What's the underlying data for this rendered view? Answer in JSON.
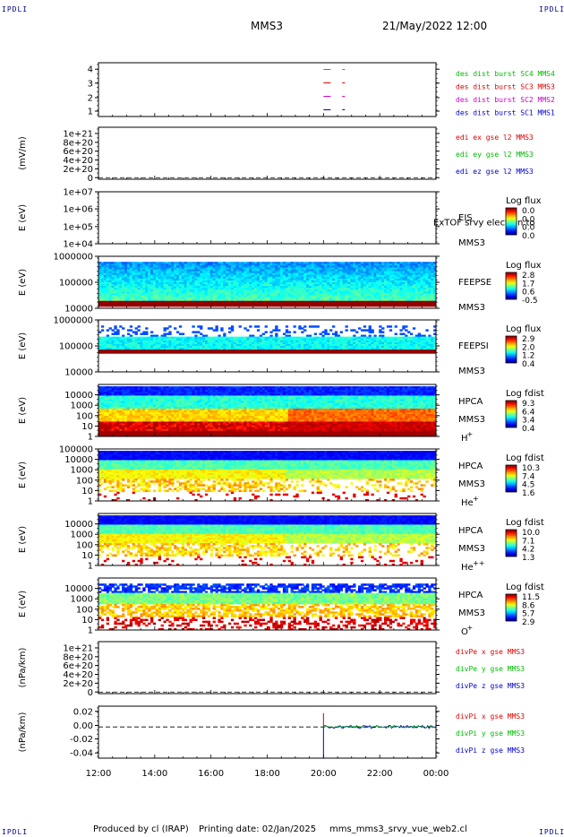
{
  "corner_label": "IPDLI",
  "header": {
    "title": "MMS3",
    "datetime": "21/May/2022 12:00"
  },
  "footer": {
    "producer": "Produced by cl (IRAP)",
    "printing": "Printing date: 02/Jan/2025",
    "file": "mms_mms3_srvy_vue_web2.cl"
  },
  "x_ticks": [
    "12:00",
    "14:00",
    "16:00",
    "18:00",
    "20:00",
    "22:00",
    "00:00"
  ],
  "chart_data": [
    {
      "type": "scatter",
      "panel": "burst",
      "yticks": [
        "1",
        "2",
        "3",
        "4"
      ],
      "ylim": [
        0.5,
        4.5
      ],
      "x": [
        "20:00",
        "20:40"
      ],
      "series": [
        {
          "name": "des dist burst SC1 MMS1",
          "color": "#0000cc",
          "y": 1
        },
        {
          "name": "des dist burst SC2 MMS2",
          "color": "#cc00cc",
          "y": 2
        },
        {
          "name": "des dist burst SC3 MMS3",
          "color": "#dd0000",
          "y": 3
        },
        {
          "name": "des dist burst SC4 MMS4",
          "color": "#00bb00",
          "y": 4
        }
      ]
    },
    {
      "type": "line",
      "panel": "edi",
      "ylabel": "(mV/m)",
      "yticks": [
        "0",
        "2e+20",
        "4e+20",
        "6e+20",
        "8e+20",
        "1e+21"
      ],
      "series": [
        {
          "name": "edi ex gse l2 MMS3",
          "color": "#dd0000"
        },
        {
          "name": "edi ey gse l2 MMS3",
          "color": "#00bb00"
        },
        {
          "name": "edi ez gse l2 MMS3",
          "color": "#0000cc"
        }
      ]
    },
    {
      "type": "heatmap",
      "panel": "eis",
      "ylabel": "E (eV)",
      "yticks": [
        "1e+04",
        "1e+05",
        "1e+06",
        "1e+07"
      ],
      "instrument": "EIS",
      "spacecraft": "MMS3",
      "note": "ExTOF srvy electron to",
      "colorbar": {
        "title": "Log flux",
        "ticks": [
          "0.0",
          "0.0",
          "0.0",
          "0.0"
        ]
      }
    },
    {
      "type": "heatmap",
      "panel": "feepse",
      "ylabel": "E (eV)",
      "yticks": [
        "10000",
        "100000",
        "1000000"
      ],
      "instrument": "FEEPSE",
      "spacecraft": "MMS3",
      "colorbar": {
        "title": "Log flux",
        "ticks": [
          "2.8",
          "1.7",
          "0.6",
          "-0.5"
        ]
      }
    },
    {
      "type": "heatmap",
      "panel": "feepsi",
      "ylabel": "E (eV)",
      "yticks": [
        "10000",
        "100000",
        "1000000"
      ],
      "instrument": "FEEPSI",
      "spacecraft": "MMS3",
      "colorbar": {
        "title": "Log flux",
        "ticks": [
          "2.9",
          "2.0",
          "1.2",
          "0.4"
        ]
      }
    },
    {
      "type": "heatmap",
      "panel": "hpca-h",
      "ylabel": "E (eV)",
      "yticks": [
        "1",
        "10",
        "100",
        "1000",
        "10000"
      ],
      "instrument": "HPCA",
      "spacecraft": "MMS3",
      "species": "H",
      "species_sup": "+",
      "colorbar": {
        "title": "Log fdist",
        "ticks": [
          "9.3",
          "6.4",
          "3.4",
          "0.4"
        ]
      }
    },
    {
      "type": "heatmap",
      "panel": "hpca-he",
      "ylabel": "E (eV)",
      "yticks": [
        "1",
        "10",
        "100",
        "1000",
        "10000",
        "100000"
      ],
      "instrument": "HPCA",
      "spacecraft": "MMS3",
      "species": "He",
      "species_sup": "+",
      "colorbar": {
        "title": "Log fdist",
        "ticks": [
          "10.3",
          "7.4",
          "4.5",
          "1.6"
        ]
      }
    },
    {
      "type": "heatmap",
      "panel": "hpca-hepp",
      "ylabel": "E (eV)",
      "yticks": [
        "1",
        "10",
        "100",
        "1000",
        "10000"
      ],
      "instrument": "HPCA",
      "spacecraft": "MMS3",
      "species": "He",
      "species_sup": "++",
      "colorbar": {
        "title": "Log fdist",
        "ticks": [
          "10.0",
          "7.1",
          "4.2",
          "1.3"
        ]
      }
    },
    {
      "type": "heatmap",
      "panel": "hpca-o",
      "ylabel": "E (eV)",
      "yticks": [
        "1",
        "10",
        "100",
        "1000",
        "10000"
      ],
      "instrument": "HPCA",
      "spacecraft": "MMS3",
      "species": "O",
      "species_sup": "+",
      "colorbar": {
        "title": "Log fdist",
        "ticks": [
          "11.5",
          "8.6",
          "5.7",
          "2.9"
        ]
      }
    },
    {
      "type": "line",
      "panel": "divpe",
      "ylabel": "(nPa/km)",
      "yticks": [
        "0",
        "2e+20",
        "4e+20",
        "6e+20",
        "8e+20",
        "1e+21"
      ],
      "series": [
        {
          "name": "divPe x gse MMS3",
          "color": "#dd0000"
        },
        {
          "name": "divPe y gse MMS3",
          "color": "#00bb00"
        },
        {
          "name": "divPe z gse MMS3",
          "color": "#0000cc"
        }
      ]
    },
    {
      "type": "line",
      "panel": "divpi",
      "ylabel": "(nPa/km)",
      "yticks": [
        "-0.04",
        "-0.02",
        "0.00",
        "0.02"
      ],
      "ylim": [
        -0.045,
        0.03
      ],
      "series": [
        {
          "name": "divPi x gse MMS3",
          "color": "#dd0000"
        },
        {
          "name": "divPi y gse MMS3",
          "color": "#00bb00"
        },
        {
          "name": "divPi z gse MMS3",
          "color": "#0000cc"
        }
      ],
      "x_start": "20:00"
    }
  ]
}
